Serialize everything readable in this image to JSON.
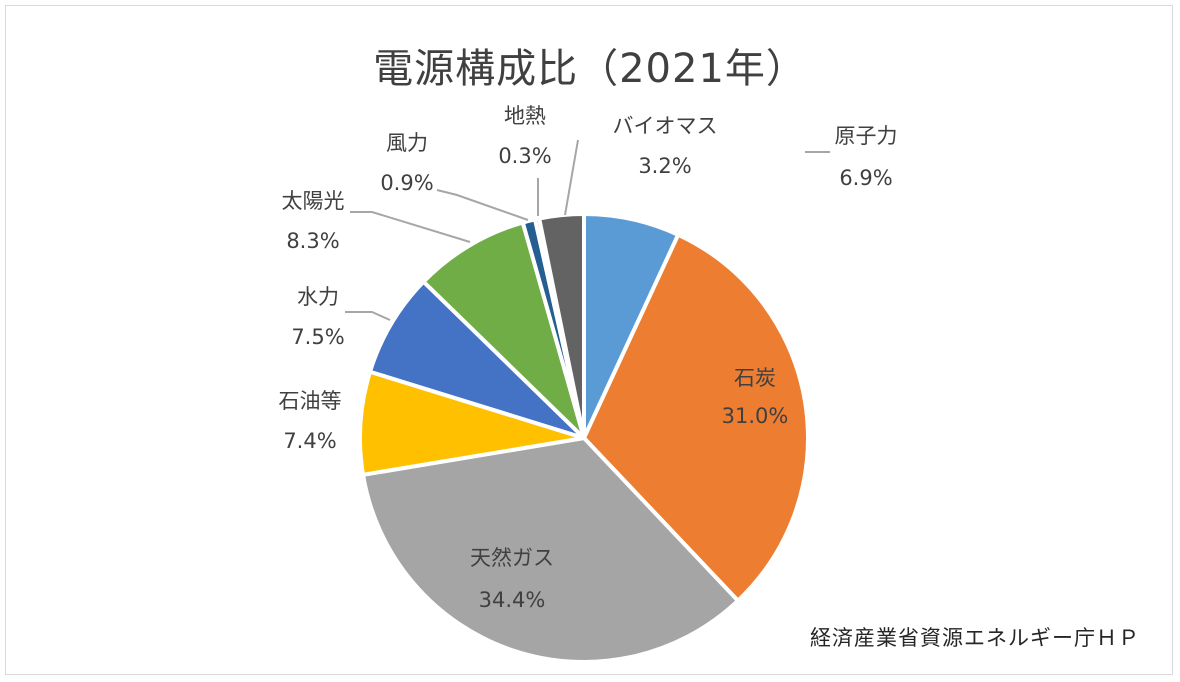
{
  "chart_title": "電源構成比（2021年）",
  "source_text": "経済産業省資源エネルギー庁ＨＰ",
  "chart_data": {
    "type": "pie",
    "title": "電源構成比（2021年）",
    "start_angle_deg": 0,
    "direction": "clockwise",
    "slices": [
      {
        "label": "原子力",
        "value_text": "6.9%",
        "value": 6.9,
        "color": "#5b9bd5"
      },
      {
        "label": "石炭",
        "value_text": "31.0%",
        "value": 31.0,
        "color": "#ed7d31"
      },
      {
        "label": "天然ガス",
        "value_text": "34.4%",
        "value": 34.4,
        "color": "#a5a5a5"
      },
      {
        "label": "石油等",
        "value_text": "7.4%",
        "value": 7.4,
        "color": "#ffc000"
      },
      {
        "label": "水力",
        "value_text": "7.5%",
        "value": 7.5,
        "color": "#4472c4"
      },
      {
        "label": "太陽光",
        "value_text": "8.3%",
        "value": 8.3,
        "color": "#70ad47"
      },
      {
        "label": "風力",
        "value_text": "0.9%",
        "value": 0.9,
        "color": "#255e91"
      },
      {
        "label": "地熱",
        "value_text": "0.3%",
        "value": 0.3,
        "color": "#9e480e"
      },
      {
        "label": "バイオマス",
        "value_text": "3.2%",
        "value": 3.2,
        "color": "#636363"
      }
    ]
  }
}
